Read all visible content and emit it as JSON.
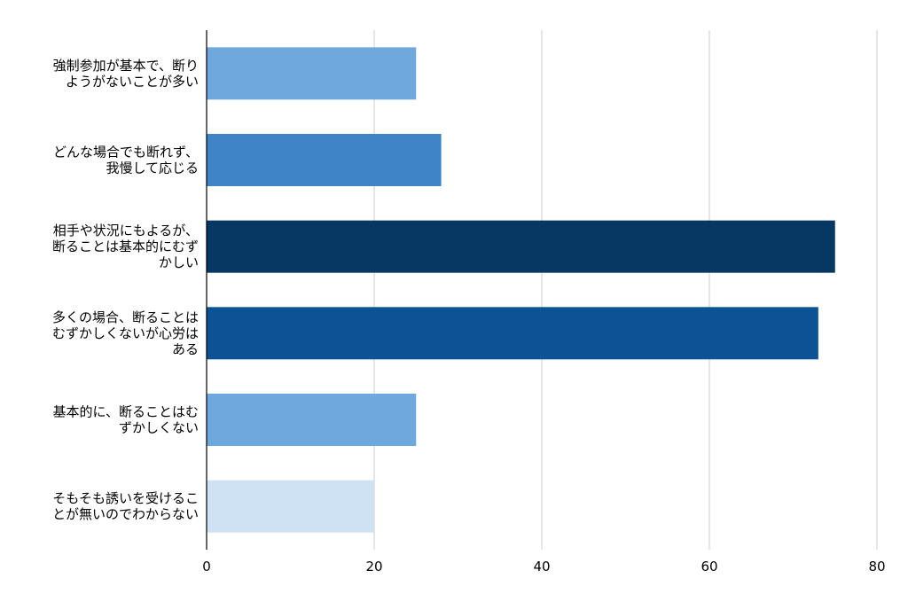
{
  "chart_data": {
    "type": "bar",
    "orientation": "horizontal",
    "categories": [
      "強制参加が基本で、断りようがないことが多い",
      "どんな場合でも断れず、我慢して応じる",
      "相手や状況にもよるが、断ることは基本的にむずかしい",
      "多くの場合、断ることはむずかしくないが心労はある",
      "基本的に、断ることはむずかしくない",
      "そもそも誘いを受けることが無いのでわからない"
    ],
    "category_lines": [
      [
        "強制参加が基本で、断り",
        "ようがないことが多い"
      ],
      [
        "どんな場合でも断れず、",
        "我慢して応じる"
      ],
      [
        "相手や状況にもよるが、",
        "断ることは基本的にむず",
        "かしい"
      ],
      [
        "多くの場合、断ることは",
        "むずかしくないが心労は",
        "ある"
      ],
      [
        "基本的に、断ることはむ",
        "ずかしくない"
      ],
      [
        "そもそも誘いを受けるこ",
        "とが無いのでわからない"
      ]
    ],
    "values": [
      25,
      28,
      75,
      73,
      25,
      20
    ],
    "bar_colors": [
      "#6fa8dc",
      "#3d85c6",
      "#073763",
      "#0b5394",
      "#6fa8dc",
      "#cfe2f3"
    ],
    "xlim": [
      0,
      80
    ],
    "xticks": [
      0,
      20,
      40,
      60,
      80
    ],
    "title": "",
    "xlabel": "",
    "ylabel": "",
    "grid": "vertical",
    "legend": "none"
  },
  "colors": {
    "grid": "#cccccc",
    "axis": "#000000",
    "text": "#000000",
    "background": "#ffffff"
  }
}
